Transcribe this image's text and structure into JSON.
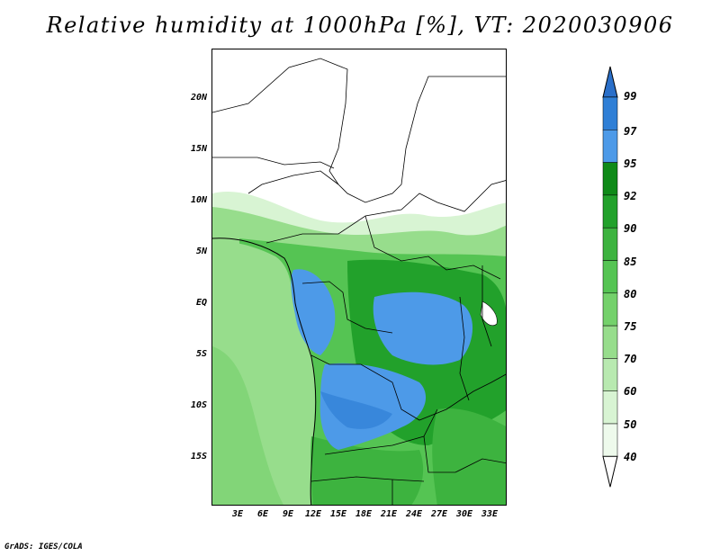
{
  "title": "Relative humidity at 1000hPa [%], VT: 2020030906",
  "credit": "GrADS: IGES/COLA",
  "lat_labels": [
    "20N",
    "15N",
    "10N",
    "5N",
    "EQ",
    "5S",
    "10S",
    "15S"
  ],
  "lon_labels": [
    "3E",
    "6E",
    "9E",
    "12E",
    "15E",
    "18E",
    "21E",
    "24E",
    "27E",
    "30E",
    "33E"
  ],
  "colorbar": {
    "levels": [
      "99",
      "97",
      "95",
      "92",
      "90",
      "85",
      "80",
      "75",
      "70",
      "60",
      "50",
      "40"
    ],
    "colors": [
      "#2a6fc9",
      "#2f7fd6",
      "#4d9ae8",
      "#0f8a18",
      "#22a12b",
      "#3db33f",
      "#55c453",
      "#74d16b",
      "#97dd8c",
      "#b8e9b0",
      "#d8f4d3",
      "#eefaec",
      "#ffffff"
    ]
  },
  "palette": {
    "ocean": "#97dd8c",
    "dry": "#ffffff",
    "wet": "#4d9ae8",
    "forest": "#3db33f"
  }
}
